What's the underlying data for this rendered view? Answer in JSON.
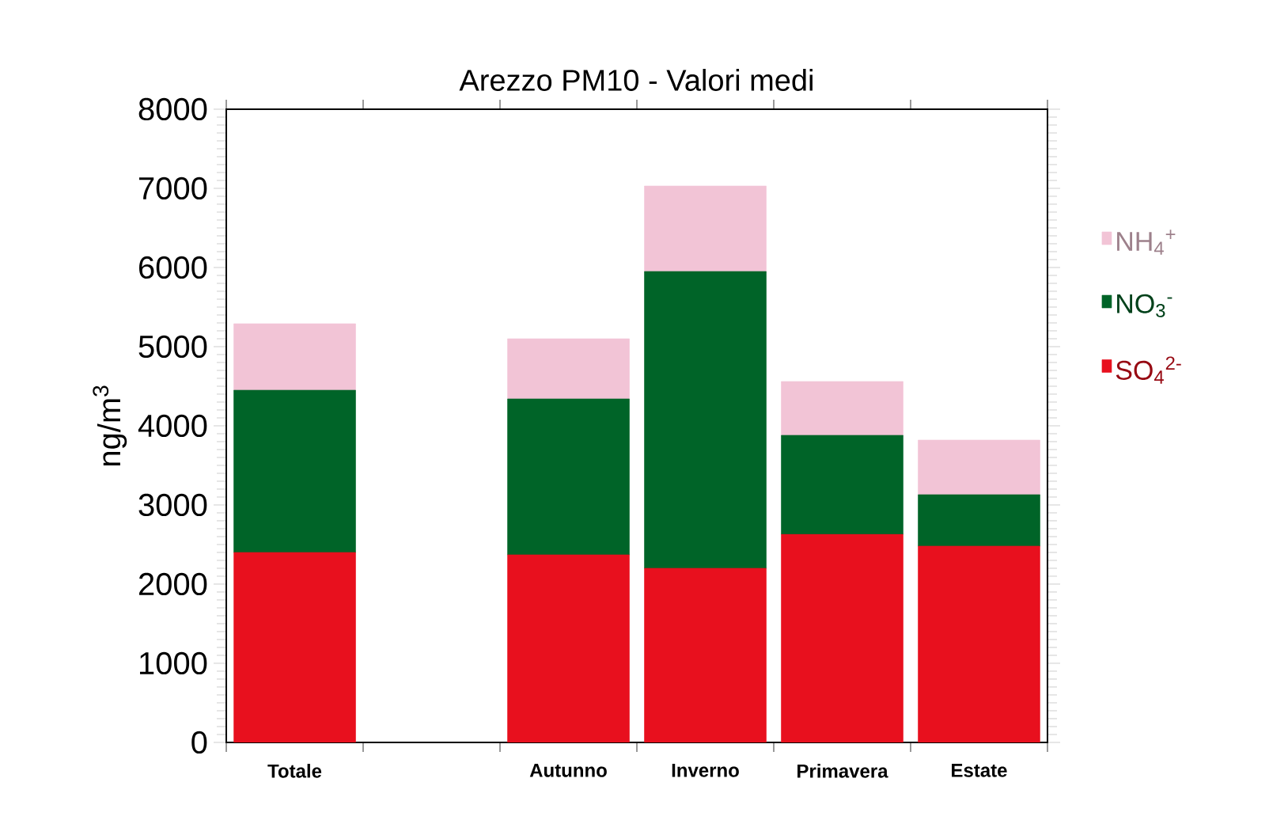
{
  "chart_data": {
    "type": "bar",
    "title": "Arezzo PM10 - Valori medi",
    "ylabel": "ng/m$^{3}$",
    "categories": [
      "Totale",
      null,
      "Autunno",
      "Inverno",
      "Primavera",
      "Estate"
    ],
    "stacked": true,
    "legend": "right",
    "grid": false,
    "ylim": [
      0,
      8000
    ],
    "yticks": [
      0,
      1000,
      2000,
      3000,
      4000,
      5000,
      6000,
      7000,
      8000
    ],
    "series": [
      {
        "name": "SO$_{4}$$^{2-}$",
        "color": "#e8101e",
        "values": [
          2400,
          null,
          2370,
          2200,
          2630,
          2480
        ]
      },
      {
        "name": "NO$_{3}$$^{-}$",
        "color": "#006428",
        "values": [
          2050,
          null,
          1970,
          3750,
          1250,
          650
        ]
      },
      {
        "name": "NH$_{4}$$^{+}$",
        "color": "#f2c4d6",
        "values": [
          840,
          null,
          760,
          1080,
          680,
          690
        ]
      }
    ]
  }
}
